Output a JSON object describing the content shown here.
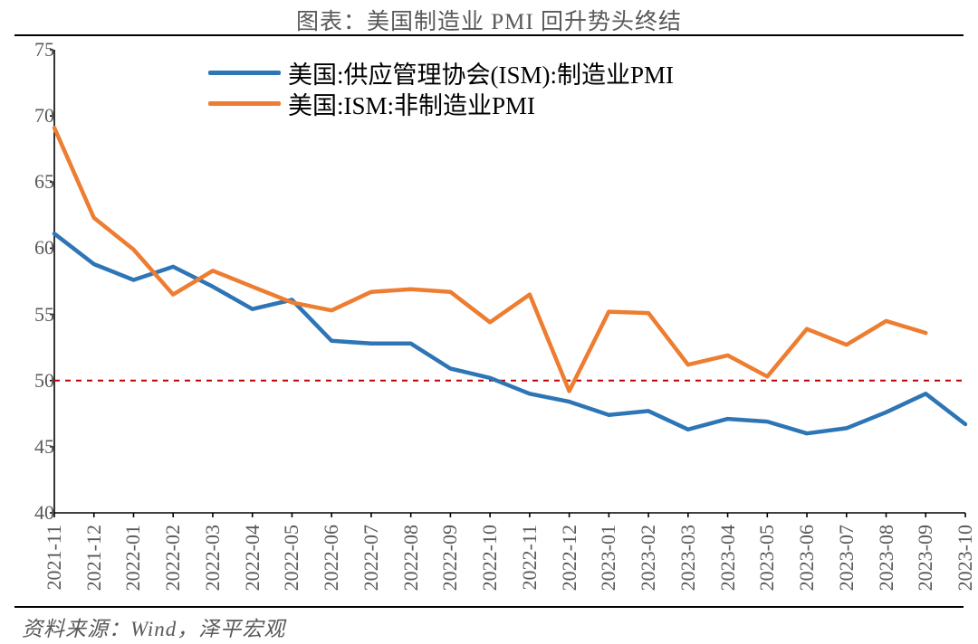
{
  "title": "图表：美国制造业 PMI 回升势头终结",
  "source": "资料来源：Wind，泽平宏观",
  "chart": {
    "type": "line",
    "background_color": "#ffffff",
    "title_color": "#595959",
    "title_fontsize": 25,
    "axis_label_color": "#595959",
    "axis_label_fontsize": 22,
    "axis_line_color": "#000000",
    "axis_line_width": 1.6,
    "ylim": [
      40,
      75
    ],
    "ytick_step": 5,
    "yticks": [
      40,
      45,
      50,
      55,
      60,
      65,
      70,
      75
    ],
    "x_categories": [
      "2021-11",
      "2021-12",
      "2022-01",
      "2022-02",
      "2022-03",
      "2022-04",
      "2022-05",
      "2022-06",
      "2022-07",
      "2022-08",
      "2022-09",
      "2022-10",
      "2022-11",
      "2022-12",
      "2023-01",
      "2023-02",
      "2023-03",
      "2023-04",
      "2023-05",
      "2023-06",
      "2023-07",
      "2023-08",
      "2023-09",
      "2023-10"
    ],
    "reference_line": {
      "y": 50,
      "color": "#c00000",
      "dash": "6,6",
      "width": 2
    },
    "legend": {
      "position": "top-inside",
      "fontsize": 27,
      "items": [
        {
          "label": "美国:供应管理协会(ISM):制造业PMI",
          "color": "#2e75b6"
        },
        {
          "label": "美国:ISM:非制造业PMI",
          "color": "#ed7d31"
        }
      ]
    },
    "series": [
      {
        "name": "manufacturing_pmi",
        "label": "美国:供应管理协会(ISM):制造业PMI",
        "color": "#2e75b6",
        "line_width": 4.5,
        "values": [
          61.1,
          58.8,
          57.6,
          58.6,
          57.1,
          55.4,
          56.1,
          53.0,
          52.8,
          52.8,
          50.9,
          50.2,
          49.0,
          48.4,
          47.4,
          47.7,
          46.3,
          47.1,
          46.9,
          46.0,
          46.4,
          47.6,
          49.0,
          46.7
        ]
      },
      {
        "name": "non_manufacturing_pmi",
        "label": "美国:ISM:非制造业PMI",
        "color": "#ed7d31",
        "line_width": 4.5,
        "values": [
          69.1,
          62.3,
          59.9,
          56.5,
          58.3,
          57.1,
          55.9,
          55.3,
          56.7,
          56.9,
          56.7,
          54.4,
          56.5,
          49.2,
          55.2,
          55.1,
          51.2,
          51.9,
          50.3,
          53.9,
          52.7,
          54.5,
          53.6,
          null
        ]
      }
    ]
  }
}
